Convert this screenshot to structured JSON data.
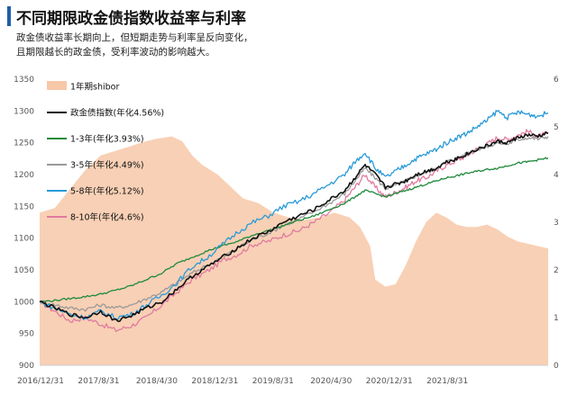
{
  "title": "不同期限政金债指数收益率与利率",
  "subtitle_lines": [
    "政金债收益率长期向上，但短期走势与利率呈反向变化，",
    "且期限越长的政金债，受利率波动的影响越大。"
  ],
  "colors": {
    "shibor": "#f7c8a8",
    "total": "#111111",
    "s13": "#1e8a3a",
    "s35": "#9a9a9a",
    "s58": "#2a9ad8",
    "s810": "#e07aa0"
  },
  "chart_data": {
    "type": "line",
    "x_ticks": [
      "2016/12/31",
      "2017/8/31",
      "2018/4/30",
      "2018/12/31",
      "2019/8/31",
      "2020/4/30",
      "2020/12/31",
      "2021/8/31"
    ],
    "y_left": {
      "min": 900,
      "max": 1350,
      "ticks": [
        900,
        950,
        1000,
        1050,
        1100,
        1150,
        1200,
        1250,
        1300,
        1350
      ]
    },
    "y_right": {
      "min": 0,
      "max": 6,
      "ticks": [
        0,
        1,
        2,
        3,
        4,
        5,
        6
      ]
    },
    "legend_position": "top-left",
    "series": [
      {
        "key": "shibor",
        "name": "1年期shibor",
        "kind": "area",
        "axis": "right",
        "points": [
          [
            0,
            3.2
          ],
          [
            0.03,
            3.3
          ],
          [
            0.06,
            3.7
          ],
          [
            0.09,
            4.1
          ],
          [
            0.12,
            4.4
          ],
          [
            0.15,
            4.5
          ],
          [
            0.18,
            4.6
          ],
          [
            0.21,
            4.7
          ],
          [
            0.23,
            4.75
          ],
          [
            0.26,
            4.8
          ],
          [
            0.28,
            4.7
          ],
          [
            0.3,
            4.4
          ],
          [
            0.32,
            4.2
          ],
          [
            0.35,
            4.0
          ],
          [
            0.37,
            3.8
          ],
          [
            0.4,
            3.5
          ],
          [
            0.43,
            3.4
          ],
          [
            0.46,
            3.2
          ],
          [
            0.49,
            3.1
          ],
          [
            0.52,
            3.05
          ],
          [
            0.55,
            3.1
          ],
          [
            0.58,
            3.2
          ],
          [
            0.61,
            3.1
          ],
          [
            0.63,
            2.9
          ],
          [
            0.65,
            2.5
          ],
          [
            0.66,
            1.8
          ],
          [
            0.68,
            1.65
          ],
          [
            0.7,
            1.7
          ],
          [
            0.72,
            2.1
          ],
          [
            0.74,
            2.6
          ],
          [
            0.76,
            3.0
          ],
          [
            0.78,
            3.2
          ],
          [
            0.8,
            3.1
          ],
          [
            0.82,
            2.95
          ],
          [
            0.84,
            2.9
          ],
          [
            0.86,
            2.9
          ],
          [
            0.88,
            2.95
          ],
          [
            0.9,
            2.85
          ],
          [
            0.92,
            2.7
          ],
          [
            0.94,
            2.6
          ],
          [
            0.96,
            2.55
          ],
          [
            0.98,
            2.5
          ],
          [
            1.0,
            2.45
          ]
        ]
      },
      {
        "key": "total",
        "name": "政金债指数(年化4.56%)",
        "kind": "line",
        "axis": "left",
        "points": [
          [
            0,
            1000
          ],
          [
            0.03,
            990
          ],
          [
            0.06,
            980
          ],
          [
            0.09,
            975
          ],
          [
            0.12,
            985
          ],
          [
            0.15,
            970
          ],
          [
            0.18,
            978
          ],
          [
            0.21,
            990
          ],
          [
            0.24,
            1000
          ],
          [
            0.27,
            1020
          ],
          [
            0.3,
            1040
          ],
          [
            0.33,
            1055
          ],
          [
            0.36,
            1070
          ],
          [
            0.39,
            1085
          ],
          [
            0.42,
            1100
          ],
          [
            0.45,
            1110
          ],
          [
            0.48,
            1125
          ],
          [
            0.51,
            1135
          ],
          [
            0.54,
            1145
          ],
          [
            0.57,
            1160
          ],
          [
            0.6,
            1175
          ],
          [
            0.62,
            1195
          ],
          [
            0.64,
            1215
          ],
          [
            0.66,
            1200
          ],
          [
            0.68,
            1180
          ],
          [
            0.7,
            1185
          ],
          [
            0.72,
            1190
          ],
          [
            0.74,
            1200
          ],
          [
            0.76,
            1205
          ],
          [
            0.78,
            1210
          ],
          [
            0.8,
            1220
          ],
          [
            0.82,
            1225
          ],
          [
            0.84,
            1232
          ],
          [
            0.86,
            1240
          ],
          [
            0.88,
            1245
          ],
          [
            0.9,
            1252
          ],
          [
            0.92,
            1250
          ],
          [
            0.94,
            1258
          ],
          [
            0.96,
            1262
          ],
          [
            0.98,
            1260
          ],
          [
            1.0,
            1265
          ]
        ]
      },
      {
        "key": "s13",
        "name": "1-3年(年化3.93%)",
        "kind": "line",
        "axis": "left",
        "points": [
          [
            0,
            1000
          ],
          [
            0.03,
            1002
          ],
          [
            0.06,
            1005
          ],
          [
            0.09,
            1008
          ],
          [
            0.12,
            1012
          ],
          [
            0.15,
            1018
          ],
          [
            0.18,
            1025
          ],
          [
            0.21,
            1035
          ],
          [
            0.24,
            1045
          ],
          [
            0.27,
            1060
          ],
          [
            0.3,
            1070
          ],
          [
            0.33,
            1080
          ],
          [
            0.36,
            1088
          ],
          [
            0.39,
            1095
          ],
          [
            0.42,
            1105
          ],
          [
            0.45,
            1112
          ],
          [
            0.48,
            1120
          ],
          [
            0.51,
            1128
          ],
          [
            0.54,
            1135
          ],
          [
            0.57,
            1145
          ],
          [
            0.6,
            1155
          ],
          [
            0.62,
            1165
          ],
          [
            0.64,
            1175
          ],
          [
            0.66,
            1170
          ],
          [
            0.68,
            1165
          ],
          [
            0.7,
            1170
          ],
          [
            0.72,
            1175
          ],
          [
            0.74,
            1180
          ],
          [
            0.76,
            1185
          ],
          [
            0.78,
            1190
          ],
          [
            0.8,
            1195
          ],
          [
            0.82,
            1198
          ],
          [
            0.84,
            1202
          ],
          [
            0.86,
            1205
          ],
          [
            0.88,
            1208
          ],
          [
            0.9,
            1210
          ],
          [
            0.92,
            1214
          ],
          [
            0.94,
            1218
          ],
          [
            0.96,
            1220
          ],
          [
            0.98,
            1223
          ],
          [
            1.0,
            1226
          ]
        ]
      },
      {
        "key": "s35",
        "name": "3-5年(年化4.49%)",
        "kind": "line",
        "axis": "left",
        "points": [
          [
            0,
            1000
          ],
          [
            0.03,
            995
          ],
          [
            0.06,
            990
          ],
          [
            0.09,
            988
          ],
          [
            0.12,
            995
          ],
          [
            0.15,
            990
          ],
          [
            0.18,
            995
          ],
          [
            0.21,
            1005
          ],
          [
            0.24,
            1015
          ],
          [
            0.27,
            1030
          ],
          [
            0.3,
            1045
          ],
          [
            0.33,
            1058
          ],
          [
            0.36,
            1070
          ],
          [
            0.39,
            1085
          ],
          [
            0.42,
            1098
          ],
          [
            0.45,
            1108
          ],
          [
            0.48,
            1120
          ],
          [
            0.51,
            1130
          ],
          [
            0.54,
            1142
          ],
          [
            0.57,
            1155
          ],
          [
            0.6,
            1170
          ],
          [
            0.62,
            1190
          ],
          [
            0.64,
            1210
          ],
          [
            0.66,
            1195
          ],
          [
            0.68,
            1178
          ],
          [
            0.7,
            1183
          ],
          [
            0.72,
            1190
          ],
          [
            0.74,
            1198
          ],
          [
            0.76,
            1203
          ],
          [
            0.78,
            1210
          ],
          [
            0.8,
            1220
          ],
          [
            0.82,
            1226
          ],
          [
            0.84,
            1233
          ],
          [
            0.86,
            1240
          ],
          [
            0.88,
            1244
          ],
          [
            0.9,
            1250
          ],
          [
            0.92,
            1248
          ],
          [
            0.94,
            1255
          ],
          [
            0.96,
            1258
          ],
          [
            0.98,
            1256
          ],
          [
            1.0,
            1260
          ]
        ]
      },
      {
        "key": "s58",
        "name": "5-8年(年化5.12%)",
        "kind": "line",
        "axis": "left",
        "points": [
          [
            0,
            1000
          ],
          [
            0.03,
            990
          ],
          [
            0.06,
            980
          ],
          [
            0.09,
            975
          ],
          [
            0.12,
            985
          ],
          [
            0.15,
            975
          ],
          [
            0.18,
            980
          ],
          [
            0.21,
            995
          ],
          [
            0.24,
            1010
          ],
          [
            0.27,
            1030
          ],
          [
            0.3,
            1055
          ],
          [
            0.33,
            1070
          ],
          [
            0.36,
            1090
          ],
          [
            0.39,
            1110
          ],
          [
            0.42,
            1125
          ],
          [
            0.45,
            1135
          ],
          [
            0.48,
            1150
          ],
          [
            0.51,
            1158
          ],
          [
            0.54,
            1170
          ],
          [
            0.57,
            1185
          ],
          [
            0.6,
            1200
          ],
          [
            0.62,
            1220
          ],
          [
            0.64,
            1235
          ],
          [
            0.66,
            1210
          ],
          [
            0.68,
            1195
          ],
          [
            0.7,
            1205
          ],
          [
            0.72,
            1215
          ],
          [
            0.74,
            1225
          ],
          [
            0.76,
            1232
          ],
          [
            0.78,
            1240
          ],
          [
            0.8,
            1250
          ],
          [
            0.82,
            1258
          ],
          [
            0.84,
            1265
          ],
          [
            0.86,
            1275
          ],
          [
            0.88,
            1285
          ],
          [
            0.9,
            1300
          ],
          [
            0.92,
            1290
          ],
          [
            0.94,
            1298
          ],
          [
            0.96,
            1295
          ],
          [
            0.98,
            1292
          ],
          [
            1.0,
            1297
          ]
        ]
      },
      {
        "key": "s810",
        "name": "8-10年(年化4.6%)",
        "kind": "line",
        "axis": "left",
        "points": [
          [
            0,
            1000
          ],
          [
            0.03,
            985
          ],
          [
            0.06,
            970
          ],
          [
            0.09,
            975
          ],
          [
            0.12,
            965
          ],
          [
            0.15,
            955
          ],
          [
            0.18,
            962
          ],
          [
            0.21,
            975
          ],
          [
            0.24,
            995
          ],
          [
            0.27,
            1015
          ],
          [
            0.3,
            1035
          ],
          [
            0.33,
            1048
          ],
          [
            0.36,
            1065
          ],
          [
            0.39,
            1075
          ],
          [
            0.42,
            1090
          ],
          [
            0.45,
            1095
          ],
          [
            0.48,
            1105
          ],
          [
            0.51,
            1112
          ],
          [
            0.54,
            1125
          ],
          [
            0.57,
            1140
          ],
          [
            0.6,
            1160
          ],
          [
            0.62,
            1180
          ],
          [
            0.64,
            1200
          ],
          [
            0.66,
            1180
          ],
          [
            0.68,
            1165
          ],
          [
            0.7,
            1172
          ],
          [
            0.72,
            1180
          ],
          [
            0.74,
            1190
          ],
          [
            0.76,
            1195
          ],
          [
            0.78,
            1205
          ],
          [
            0.8,
            1215
          ],
          [
            0.82,
            1222
          ],
          [
            0.84,
            1230
          ],
          [
            0.86,
            1240
          ],
          [
            0.88,
            1248
          ],
          [
            0.9,
            1258
          ],
          [
            0.92,
            1255
          ],
          [
            0.94,
            1262
          ],
          [
            0.96,
            1268
          ],
          [
            0.98,
            1260
          ],
          [
            1.0,
            1265
          ]
        ]
      }
    ]
  }
}
